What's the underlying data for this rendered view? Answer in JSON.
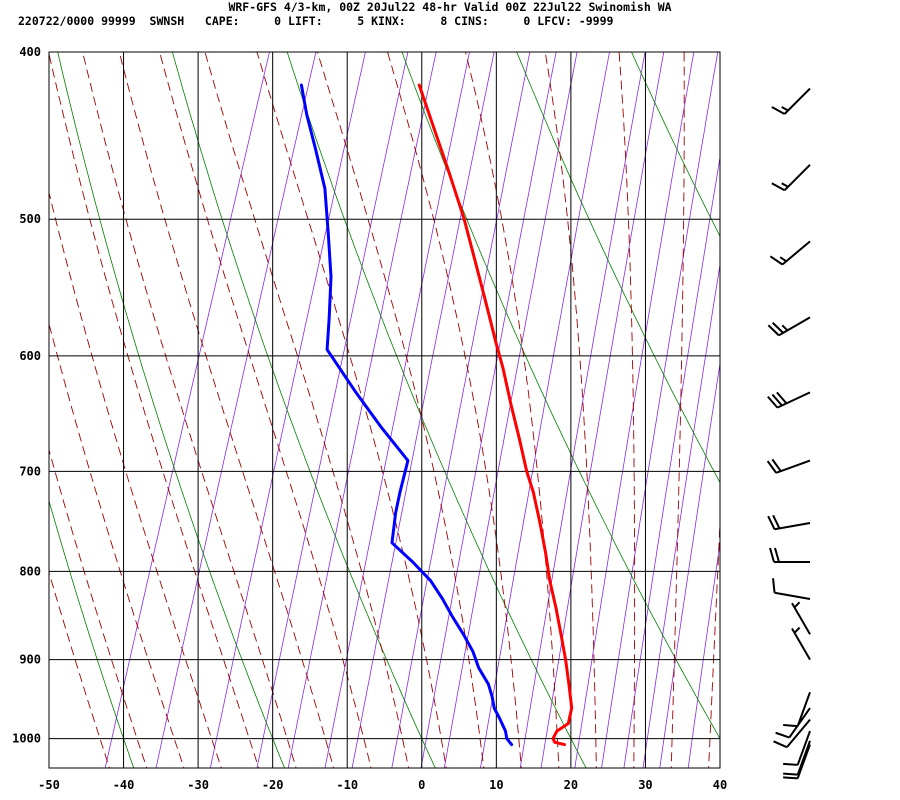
{
  "header": {
    "title": "WRF-GFS 4/3-km, 00Z 20Jul22 48-hr Valid 00Z 22Jul22 Swinomish WA",
    "indices": "220722/0000 99999  SWNSH   CAPE:     0 LIFT:     5 KINX:     8 CINS:     0 LFCV: -9999"
  },
  "chart_data": {
    "type": "line",
    "subtype": "skew-t log-p sounding",
    "title": "WRF-GFS 4/3-km, 00Z 20Jul22 48-hr Valid 00Z 22Jul22 Swinomish WA",
    "xlabel": "",
    "ylabel": "",
    "x_ticks": [
      -50,
      -40,
      -30,
      -20,
      -10,
      0,
      10,
      20,
      30,
      40
    ],
    "y_ticks": [
      400,
      500,
      600,
      700,
      800,
      900,
      1000
    ],
    "xlim": [
      -50,
      40
    ],
    "ylim": [
      400,
      1040
    ],
    "y_scale": "log (pressure, inverted)",
    "grid": true,
    "series": [
      {
        "color": "#ff0000",
        "points": [
          {
            "p": 1008,
            "t": 19.4
          },
          {
            "p": 1005,
            "t": 18.0
          },
          {
            "p": 1000,
            "t": 17.6
          },
          {
            "p": 990,
            "t": 17.8
          },
          {
            "p": 980,
            "t": 19.0
          },
          {
            "p": 960,
            "t": 18.8
          },
          {
            "p": 930,
            "t": 17.4
          },
          {
            "p": 900,
            "t": 15.9
          },
          {
            "p": 870,
            "t": 14.2
          },
          {
            "p": 840,
            "t": 12.4
          },
          {
            "p": 810,
            "t": 10.4
          },
          {
            "p": 780,
            "t": 8.6
          },
          {
            "p": 750,
            "t": 6.6
          },
          {
            "p": 720,
            "t": 4.4
          },
          {
            "p": 700,
            "t": 2.6
          },
          {
            "p": 670,
            "t": 0.2
          },
          {
            "p": 640,
            "t": -2.4
          },
          {
            "p": 610,
            "t": -5.0
          },
          {
            "p": 590,
            "t": -7.0
          },
          {
            "p": 560,
            "t": -10.0
          },
          {
            "p": 530,
            "t": -13.2
          },
          {
            "p": 500,
            "t": -16.6
          },
          {
            "p": 470,
            "t": -20.6
          },
          {
            "p": 440,
            "t": -25.0
          },
          {
            "p": 418,
            "t": -28.4
          }
        ]
      },
      {
        "color": "#0000ff",
        "points": [
          {
            "p": 1008,
            "t": 12.3
          },
          {
            "p": 1000,
            "t": 11.4
          },
          {
            "p": 990,
            "t": 10.9
          },
          {
            "p": 975,
            "t": 9.7
          },
          {
            "p": 960,
            "t": 8.4
          },
          {
            "p": 945,
            "t": 7.6
          },
          {
            "p": 930,
            "t": 6.6
          },
          {
            "p": 910,
            "t": 4.6
          },
          {
            "p": 890,
            "t": 3.1
          },
          {
            "p": 870,
            "t": 1.1
          },
          {
            "p": 850,
            "t": -1.1
          },
          {
            "p": 830,
            "t": -3.2
          },
          {
            "p": 810,
            "t": -5.6
          },
          {
            "p": 790,
            "t": -8.8
          },
          {
            "p": 770,
            "t": -12.4
          },
          {
            "p": 740,
            "t": -13.2
          },
          {
            "p": 720,
            "t": -13.5
          },
          {
            "p": 690,
            "t": -13.8
          },
          {
            "p": 660,
            "t": -18.8
          },
          {
            "p": 630,
            "t": -23.7
          },
          {
            "p": 595,
            "t": -29.4
          },
          {
            "p": 570,
            "t": -30.5
          },
          {
            "p": 540,
            "t": -32.0
          },
          {
            "p": 510,
            "t": -34.2
          },
          {
            "p": 480,
            "t": -36.6
          },
          {
            "p": 455,
            "t": -39.6
          },
          {
            "p": 435,
            "t": -42.2
          },
          {
            "p": 418,
            "t": -44.2
          }
        ]
      }
    ],
    "wind_barbs": [
      {
        "p": 420,
        "dir": 225,
        "speed": 15
      },
      {
        "p": 465,
        "dir": 225,
        "speed": 15
      },
      {
        "p": 515,
        "dir": 230,
        "speed": 15
      },
      {
        "p": 570,
        "dir": 240,
        "speed": 25
      },
      {
        "p": 630,
        "dir": 245,
        "speed": 30
      },
      {
        "p": 690,
        "dir": 250,
        "speed": 20
      },
      {
        "p": 750,
        "dir": 260,
        "speed": 20
      },
      {
        "p": 790,
        "dir": 270,
        "speed": 20
      },
      {
        "p": 830,
        "dir": 280,
        "speed": 10
      },
      {
        "p": 870,
        "dir": 330,
        "speed": 5
      },
      {
        "p": 900,
        "dir": 330,
        "speed": 5
      },
      {
        "p": 940,
        "dir": 200,
        "speed": 10
      },
      {
        "p": 960,
        "dir": 215,
        "speed": 10
      },
      {
        "p": 975,
        "dir": 220,
        "speed": 10
      },
      {
        "p": 990,
        "dir": 200,
        "speed": 10
      },
      {
        "p": 1003,
        "dir": 200,
        "speed": 10
      },
      {
        "p": 1008,
        "dir": 200,
        "speed": 10
      }
    ],
    "colors": {
      "temperature": "#ff0000",
      "dewpoint": "#0000ff",
      "dry_adiabats": "#008000",
      "moist_adiabats": "#a00000",
      "mixing_ratio": "#8a2be2",
      "grid": "#000000",
      "wind_barbs": "#000000"
    }
  }
}
